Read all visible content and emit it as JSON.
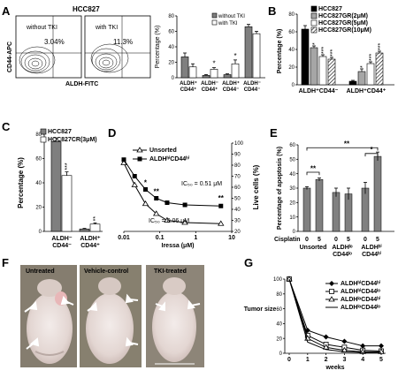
{
  "figure": {
    "panels": {
      "A": {
        "label": "A",
        "title": "HCC827",
        "ylabel": "CD44-APC",
        "xlabel": "ALDH-FITC",
        "flow_left_label": "without TKI",
        "flow_left_pct": "3.04%",
        "flow_right_label": "with TKI",
        "flow_right_pct": "11.3%"
      },
      "B": {
        "label": "B"
      },
      "C": {
        "label": "C"
      },
      "D": {
        "label": "D",
        "ic50_1": "IC₅₀ = 0.51 μM",
        "ic50_2": "IC₅₀ = 0.06 μM"
      },
      "E": {
        "label": "E",
        "cisplatin_label": "Cisplatin"
      },
      "F": {
        "label": "F",
        "photo_labels": [
          "Untreated",
          "Vehicle-control",
          "TKI-treated"
        ]
      },
      "G": {
        "label": "G"
      }
    }
  },
  "chart_data": [
    {
      "id": "A-bar",
      "type": "bar",
      "ylabel": "Percentage (%)",
      "ylim": [
        0,
        80
      ],
      "yticks": [
        0,
        20,
        40,
        60,
        80
      ],
      "categories": [
        "ALDH+ CD44+",
        "ALDH- CD44+",
        "ALDH+ CD44-",
        "ALDH- CD44-"
      ],
      "category_lines": [
        [
          "ALDH⁺",
          "CD44⁺"
        ],
        [
          "ALDH⁻",
          "CD44⁺"
        ],
        [
          "ALDH⁺",
          "CD44⁻"
        ],
        [
          "ALDH⁻",
          "CD44⁻"
        ]
      ],
      "series": [
        {
          "name": "without TKI",
          "color": "#7f7f7f",
          "values": [
            27,
            3,
            4,
            66
          ],
          "err": [
            5,
            1,
            1,
            3
          ]
        },
        {
          "name": "with TKI",
          "color": "#ffffff",
          "values": [
            14,
            11,
            18,
            57
          ],
          "err": [
            4,
            2,
            5,
            3
          ]
        }
      ],
      "sig": [
        "",
        "*",
        "*",
        ""
      ],
      "legend": "top-right"
    },
    {
      "id": "B-bar",
      "type": "bar",
      "ylabel": "Percentage (%)",
      "ylim": [
        0,
        80
      ],
      "yticks": [
        0,
        20,
        40,
        60,
        80
      ],
      "categories": [
        "ALDH+CD44-",
        "ALDH+CD44+"
      ],
      "category_text": [
        "ALDH⁺CD44⁻",
        "ALDH⁺CD44⁺"
      ],
      "series": [
        {
          "name": "HCC827",
          "color": "#000000",
          "values": [
            63,
            4
          ],
          "err": [
            4,
            1
          ]
        },
        {
          "name": "HCC827GR(2μM)",
          "color": "#a6a6a6",
          "values": [
            42,
            15
          ],
          "err": [
            2,
            3
          ]
        },
        {
          "name": "HCC827GR(5μM)",
          "color": "#ffffff",
          "values": [
            32,
            24
          ],
          "err": [
            2,
            2
          ]
        },
        {
          "name": "HCC827GR(10μM)",
          "color": "hatch",
          "values": [
            29,
            36
          ],
          "err": [
            2,
            2
          ]
        }
      ],
      "sig": [
        [
          "",
          "*",
          "***",
          "***"
        ],
        [
          "",
          "*",
          "***",
          "***"
        ]
      ],
      "legend": "top-right"
    },
    {
      "id": "C-bar",
      "type": "bar",
      "ylabel": "Percentage (%)",
      "ylim": [
        0,
        80
      ],
      "yticks": [
        0,
        20,
        40,
        60,
        80
      ],
      "categories": [
        "ALDH- CD44-",
        "ALDH+ CD44+"
      ],
      "category_lines": [
        [
          "ALDH⁻",
          "CD44⁻"
        ],
        [
          "ALDH⁺",
          "CD44⁺"
        ]
      ],
      "series": [
        {
          "name": "HCC827",
          "color": "#7f7f7f",
          "values": [
            74,
            2
          ],
          "err": [
            3,
            0.5
          ]
        },
        {
          "name": "HCC827CR(3μM)",
          "color": "#ffffff",
          "values": [
            46,
            6
          ],
          "err": [
            3,
            1
          ]
        }
      ],
      "sig": [
        "***",
        "**"
      ],
      "legend": "top-right"
    },
    {
      "id": "D-line",
      "type": "line",
      "xlabel": "Iressa (μM)",
      "ylabel": "Live cells (%)",
      "xscale": "log",
      "xlim": [
        0.01,
        10
      ],
      "xticks": [
        0.01,
        0.1,
        1,
        10
      ],
      "xticklabels": [
        "0.01",
        "0.1",
        "1",
        "10"
      ],
      "ylim": [
        20,
        100
      ],
      "yticks": [
        20,
        30,
        40,
        50,
        60,
        70,
        80,
        90,
        100
      ],
      "x": [
        0.01,
        0.02,
        0.04,
        0.08,
        0.16,
        0.5,
        5
      ],
      "series": [
        {
          "name": "Unsorted",
          "marker": "triangle-open",
          "values": [
            82,
            62,
            45,
            36,
            30,
            28,
            27
          ]
        },
        {
          "name": "ALDHhiCD44hi",
          "legend_text": "ALDHʰⁱCD44ʰⁱ",
          "marker": "square-filled",
          "values": [
            85,
            70,
            58,
            50,
            46,
            44,
            43
          ]
        }
      ],
      "sig_labels": [
        "*",
        "**",
        "**"
      ],
      "legend": "top-right"
    },
    {
      "id": "E-bar",
      "type": "bar",
      "ylabel": "Percentage of apoptosis (%)",
      "ylim": [
        0,
        60
      ],
      "yticks": [
        0,
        10,
        20,
        30,
        40,
        50,
        60
      ],
      "categories": [
        "Unsorted 0",
        "Unsorted 5",
        "ALDHlo CD44lo 0",
        "ALDHlo CD44lo 5",
        "ALDHhi CD44hi 0",
        "ALDHhi CD44hi 5"
      ],
      "tick_labels": [
        "0",
        "5",
        "0",
        "5",
        "0",
        "5"
      ],
      "group_labels": [
        [
          "Unsorted"
        ],
        [
          "ALDHˡᵒ",
          "CD44ˡᵒ"
        ],
        [
          "ALDHʰⁱ",
          "CD44ʰⁱ"
        ]
      ],
      "values": [
        30,
        36,
        27,
        26,
        30,
        52
      ],
      "err": [
        1,
        1,
        3,
        4,
        4,
        3
      ],
      "color": "#808080",
      "sig": [
        "**",
        "**",
        "*"
      ]
    },
    {
      "id": "G-line",
      "type": "line",
      "xlabel": "weeks",
      "ylabel": "Tumor size percentage (%)",
      "xlim": [
        0,
        5
      ],
      "xticks": [
        0,
        1,
        2,
        3,
        4,
        5
      ],
      "ylim": [
        0,
        100
      ],
      "yticks": [
        0,
        20,
        40,
        60,
        80,
        100
      ],
      "x": [
        0,
        1,
        2,
        3,
        4,
        5
      ],
      "series": [
        {
          "name": "ALDHhiCD44hi",
          "legend_text": "ALDHʰⁱCD44ʰⁱ",
          "marker": "diamond-filled",
          "values": [
            100,
            31,
            22,
            16,
            10,
            10
          ]
        },
        {
          "name": "ALDHhiCD44lo",
          "legend_text": "ALDHʰⁱCD44ˡᵒ",
          "marker": "square-open",
          "values": [
            100,
            24,
            12,
            8,
            4,
            3
          ]
        },
        {
          "name": "ALDHloCD44hi",
          "legend_text": "ALDHˡᵒCD44ʰⁱ",
          "marker": "triangle-open",
          "values": [
            100,
            20,
            8,
            4,
            2,
            2
          ]
        },
        {
          "name": "ALDHloCD44lo",
          "legend_text": "ALDHˡᵒCD44ˡᵒ",
          "marker": "none",
          "values": [
            100,
            15,
            5,
            2,
            1,
            1
          ]
        }
      ],
      "legend": "top-right"
    }
  ]
}
